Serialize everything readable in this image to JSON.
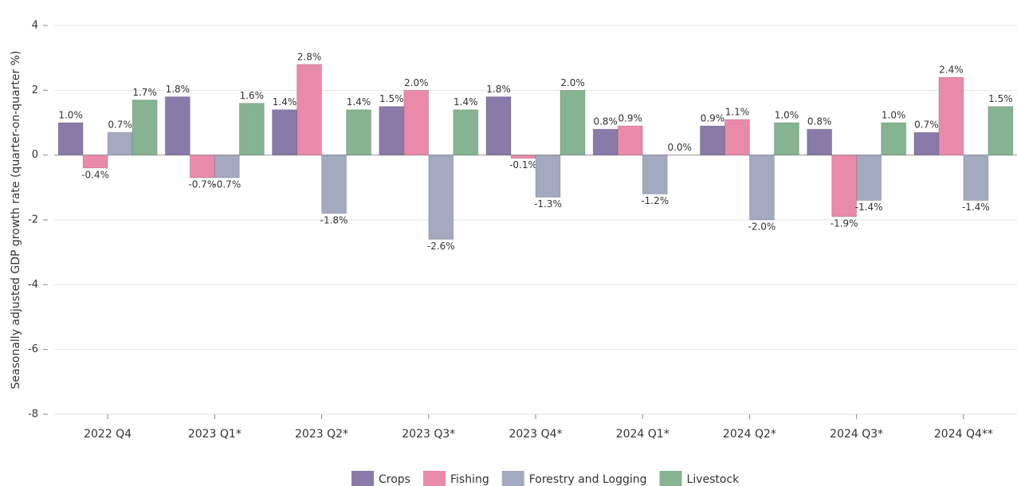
{
  "chart_data": {
    "type": "bar",
    "ylabel": "Seasonally adjusted GDP growth rate (quarter-on-quarter %)",
    "categories": [
      "2022 Q4",
      "2023 Q1*",
      "2023 Q2*",
      "2023 Q3*",
      "2023 Q4*",
      "2024 Q1*",
      "2024 Q2*",
      "2024 Q3*",
      "2024 Q4**"
    ],
    "series": [
      {
        "name": "Crops",
        "color": "#8a7aa8",
        "values": [
          1.0,
          1.8,
          1.4,
          1.5,
          1.8,
          0.8,
          0.9,
          0.8,
          0.7
        ],
        "value_labels": [
          "1.0%",
          "1.8%",
          "1.4%",
          "1.5%",
          "1.8%",
          "0.8%",
          "0.9%",
          "0.8%",
          "0.7%"
        ]
      },
      {
        "name": "Fishing",
        "color": "#e98aab",
        "values": [
          -0.4,
          -0.7,
          2.8,
          2.0,
          -0.1,
          0.9,
          1.1,
          -1.9,
          2.4
        ],
        "value_labels": [
          "-0.4%",
          "-0.7%",
          "2.8%",
          "2.0%",
          "-0.1%",
          "0.9%",
          "1.1%",
          "-1.9%",
          "2.4%"
        ]
      },
      {
        "name": "Forestry and Logging",
        "color": "#a3a9bf",
        "values": [
          0.7,
          -0.7,
          -1.8,
          -2.6,
          -1.3,
          -1.2,
          -2.0,
          -1.4,
          -1.4
        ],
        "value_labels": [
          "0.7%",
          "-0.7%",
          "-1.8%",
          "-2.6%",
          "-1.3%",
          "-1.2%",
          "-2.0%",
          "-1.4%",
          "-1.4%"
        ]
      },
      {
        "name": "Livestock",
        "color": "#86b391",
        "values": [
          1.7,
          1.6,
          1.4,
          1.4,
          2.0,
          0.0,
          1.0,
          1.0,
          1.5
        ],
        "value_labels": [
          "1.7%",
          "1.6%",
          "1.4%",
          "1.4%",
          "2.0%",
          "0.0%",
          "1.0%",
          "1.0%",
          "1.5%"
        ]
      }
    ],
    "ylim": [
      -8,
      4
    ],
    "yticks": [
      -8,
      -6,
      -4,
      -2,
      0,
      2,
      4
    ],
    "grid": true,
    "legend": "bottom"
  }
}
